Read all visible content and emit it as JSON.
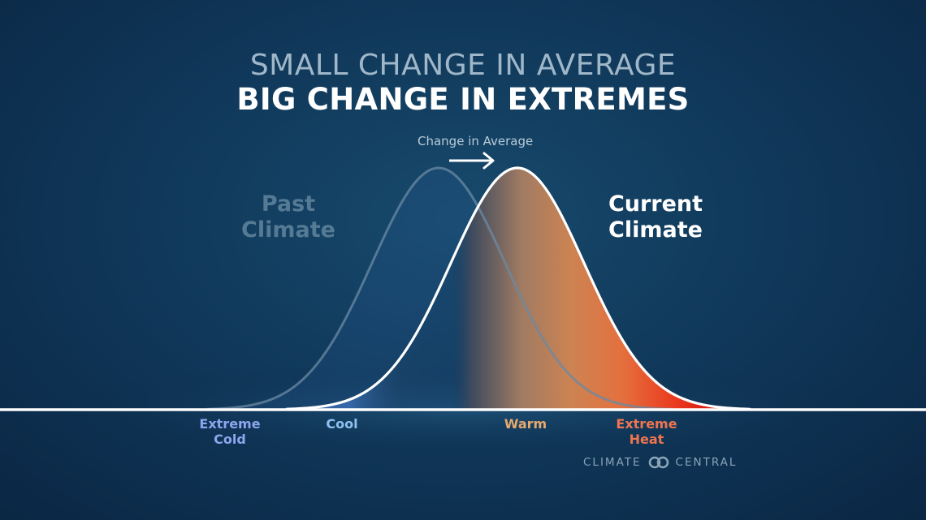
{
  "title": {
    "line1": "SMALL CHANGE IN AVERAGE",
    "line2": "BIG CHANGE IN EXTREMES"
  },
  "annotation": "Change in Average",
  "curves": {
    "past_label": "Past Climate",
    "current_label": "Current Climate"
  },
  "categories": [
    "Extreme Cold",
    "Cool",
    "Warm",
    "Extreme Heat"
  ],
  "logo": {
    "left": "CLIMATE",
    "right": "CENTRAL",
    "icon": "chain-link-icon"
  },
  "colors": {
    "cold": "#2f62b4",
    "cool": "#4c84c6",
    "warm": "#c4875a",
    "hot": "#e01810",
    "past_curve": "#6b8aa3",
    "current_curve": "#ffffff"
  }
}
